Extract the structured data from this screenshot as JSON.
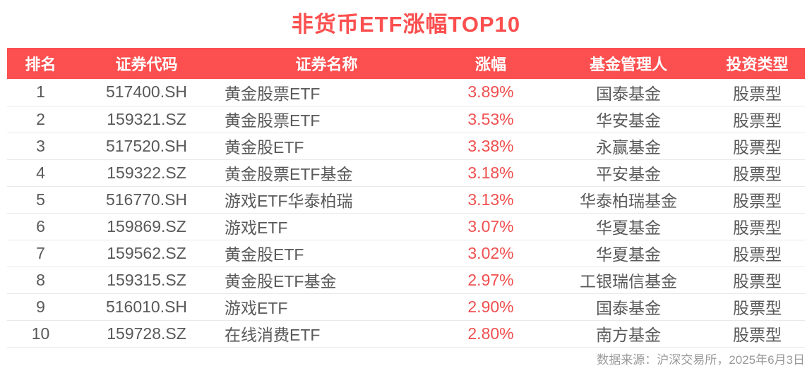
{
  "title": "非货币ETF涨幅TOP10",
  "chart_data": {
    "type": "table",
    "title": "非货币ETF涨幅TOP10",
    "columns": [
      "排名",
      "证券代码",
      "证券名称",
      "涨幅",
      "基金管理人",
      "投资类型"
    ],
    "rows": [
      [
        "1",
        "517400.SH",
        "黄金股票ETF",
        "3.89%",
        "国泰基金",
        "股票型"
      ],
      [
        "2",
        "159321.SZ",
        "黄金股票ETF",
        "3.53%",
        "华安基金",
        "股票型"
      ],
      [
        "3",
        "517520.SH",
        "黄金股ETF",
        "3.38%",
        "永赢基金",
        "股票型"
      ],
      [
        "4",
        "159322.SZ",
        "黄金股票ETF基金",
        "3.18%",
        "平安基金",
        "股票型"
      ],
      [
        "5",
        "516770.SH",
        "游戏ETF华泰柏瑞",
        "3.13%",
        "华泰柏瑞基金",
        "股票型"
      ],
      [
        "6",
        "159869.SZ",
        "游戏ETF",
        "3.07%",
        "华夏基金",
        "股票型"
      ],
      [
        "7",
        "159562.SZ",
        "黄金股ETF",
        "3.02%",
        "华夏基金",
        "股票型"
      ],
      [
        "8",
        "159315.SZ",
        "黄金股ETF基金",
        "2.97%",
        "工银瑞信基金",
        "股票型"
      ],
      [
        "9",
        "516010.SH",
        "游戏ETF",
        "2.90%",
        "国泰基金",
        "股票型"
      ],
      [
        "10",
        "159728.SZ",
        "在线消费ETF",
        "2.80%",
        "南方基金",
        "股票型"
      ]
    ],
    "source_note": "数据来源：沪深交易所，2025年6月3日"
  },
  "colors": {
    "accent_red": "#fc4f4f",
    "change_text_red": "#f04f4f",
    "header_text": "#ffffff",
    "body_text_gray": "#595959",
    "source_note_gray": "#999999",
    "row_divider": "#e9e9e9",
    "background": "#ffffff"
  }
}
